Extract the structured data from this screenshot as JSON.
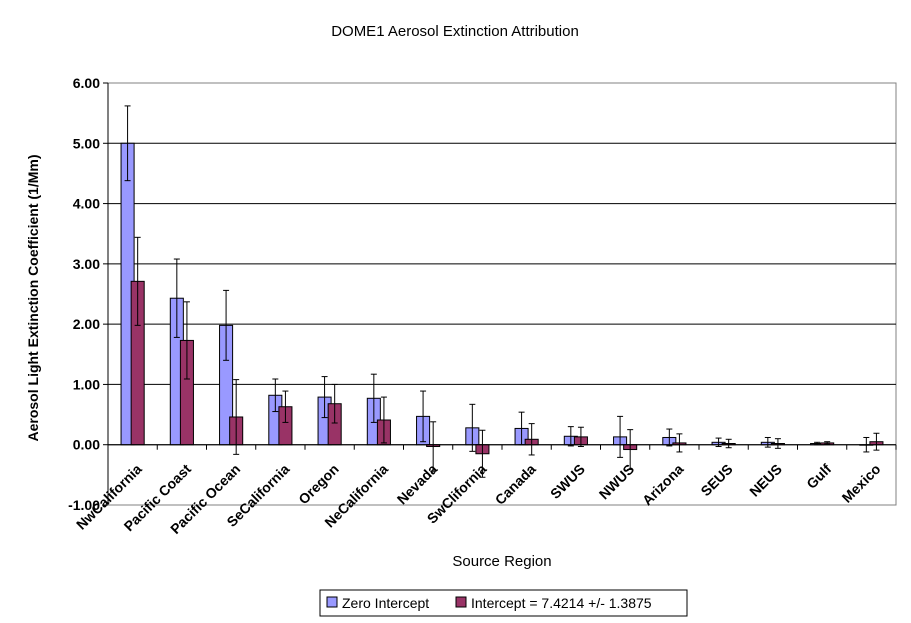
{
  "chart_data": {
    "type": "bar",
    "title": "DOME1 Aerosol Extinction Attribution",
    "xlabel": "Source Region",
    "ylabel": "Aerosol Light Extinction Coefficient (1/Mm)",
    "ylim": [
      -1.0,
      6.0
    ],
    "yticks": [
      "-1.00",
      "0.00",
      "1.00",
      "2.00",
      "3.00",
      "4.00",
      "5.00",
      "6.00"
    ],
    "grid": true,
    "legend_position": "bottom",
    "categories": [
      "NwCalifornia",
      "Pacific Coast",
      "Pacific Ocean",
      "SeCalifornia",
      "Oregon",
      "NeCalifornia",
      "Nevada",
      "SwClifornia",
      "Canada",
      "SWUS",
      "NWUS",
      "Arizona",
      "SEUS",
      "NEUS",
      "Gulf",
      "Mexico"
    ],
    "series": [
      {
        "name": "Zero Intercept",
        "color": "#9999ff",
        "values": [
          5.0,
          2.43,
          1.98,
          0.82,
          0.79,
          0.77,
          0.47,
          0.28,
          0.27,
          0.14,
          0.13,
          0.12,
          0.04,
          0.04,
          0.02,
          0.0
        ],
        "error": [
          0.62,
          0.65,
          0.58,
          0.27,
          0.34,
          0.4,
          0.42,
          0.39,
          0.27,
          0.16,
          0.34,
          0.14,
          0.07,
          0.08,
          0.02,
          0.12
        ]
      },
      {
        "name": "Intercept = 7.4214 +/- 1.3875",
        "color": "#993366",
        "values": [
          2.71,
          1.73,
          0.46,
          0.63,
          0.68,
          0.41,
          -0.03,
          -0.15,
          0.09,
          0.13,
          -0.08,
          0.03,
          0.02,
          0.02,
          0.03,
          0.05
        ],
        "error": [
          0.73,
          0.64,
          0.62,
          0.26,
          0.32,
          0.38,
          0.41,
          0.39,
          0.26,
          0.16,
          0.33,
          0.15,
          0.07,
          0.08,
          0.02,
          0.14
        ]
      }
    ]
  }
}
